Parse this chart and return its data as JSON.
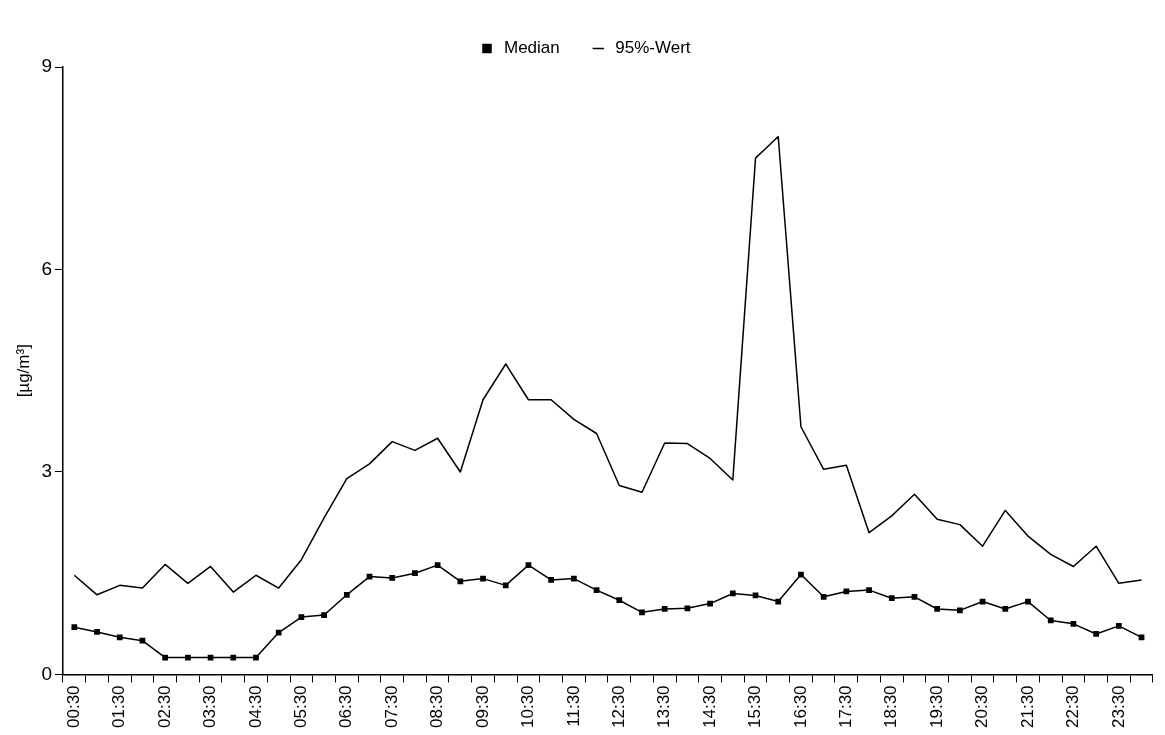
{
  "chart_data": {
    "type": "line",
    "ylabel": "[µg/m³]",
    "categories": [
      "00:30",
      null,
      "01:30",
      null,
      "02:30",
      null,
      "03:30",
      null,
      "04:30",
      null,
      "05:30",
      null,
      "06:30",
      null,
      "07:30",
      null,
      "08:30",
      null,
      "09:30",
      null,
      "10:30",
      null,
      "11:30",
      null,
      "12:30",
      null,
      "13:30",
      null,
      "14:30",
      null,
      "15:30",
      null,
      "16:30",
      null,
      "17:30",
      null,
      "18:30",
      null,
      "19:30",
      null,
      "20:30",
      null,
      "21:30",
      null,
      "22:30",
      null,
      "23:30",
      null
    ],
    "series": [
      {
        "name": "Median",
        "color": "#000000",
        "marker": "square",
        "values": [
          0.7,
          0.63,
          0.55,
          0.5,
          0.25,
          0.25,
          0.25,
          0.25,
          0.25,
          0.62,
          0.85,
          0.88,
          1.18,
          1.45,
          1.43,
          1.5,
          1.62,
          1.38,
          1.42,
          1.32,
          1.62,
          1.4,
          1.42,
          1.25,
          1.1,
          0.92,
          0.97,
          0.98,
          1.05,
          1.2,
          1.17,
          1.08,
          1.48,
          1.15,
          1.23,
          1.25,
          1.13,
          1.15,
          0.97,
          0.95,
          1.08,
          0.97,
          1.08,
          0.8,
          0.75,
          0.6,
          0.72,
          0.55
        ]
      },
      {
        "name": "95%-Wert",
        "color": "#000000",
        "marker": "none",
        "values": [
          1.47,
          1.18,
          1.32,
          1.28,
          1.63,
          1.35,
          1.6,
          1.22,
          1.47,
          1.28,
          1.7,
          2.32,
          2.9,
          3.12,
          3.45,
          3.32,
          3.5,
          3.0,
          4.07,
          4.6,
          4.07,
          4.07,
          3.78,
          3.57,
          2.8,
          2.7,
          3.43,
          3.42,
          3.2,
          2.88,
          7.65,
          7.97,
          3.67,
          3.04,
          3.1,
          2.1,
          2.35,
          2.67,
          2.3,
          2.22,
          1.9,
          2.43,
          2.05,
          1.78,
          1.6,
          1.9,
          1.35,
          1.4
        ]
      }
    ],
    "ylim": [
      0,
      9
    ],
    "yticks": [
      0,
      3,
      6,
      9
    ],
    "grid": false,
    "legend": "top"
  }
}
